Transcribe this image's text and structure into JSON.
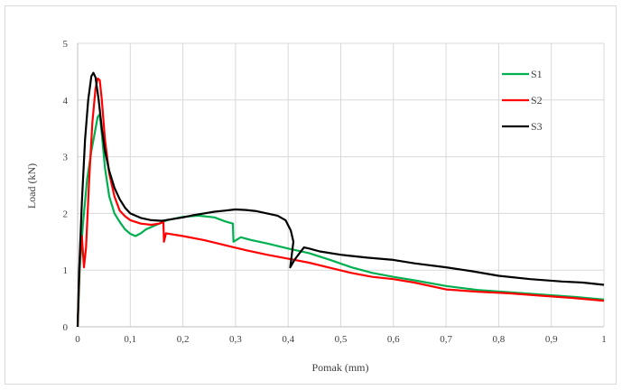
{
  "chart_data": {
    "type": "line",
    "title": "",
    "xlabel": "Pomak (mm)",
    "ylabel": "Load (kN)",
    "xlim": [
      0,
      1
    ],
    "ylim": [
      0,
      5
    ],
    "x_ticks": [
      "0",
      "0,1",
      "0,2",
      "0,3",
      "0,4",
      "0,5",
      "0,6",
      "0,7",
      "0,8",
      "0,9",
      "1"
    ],
    "y_ticks": [
      "0",
      "1",
      "2",
      "3",
      "4",
      "5"
    ],
    "grid": true,
    "legend_position": "right",
    "series": [
      {
        "name": "S1",
        "color": "#00b050",
        "points": [
          [
            0,
            0
          ],
          [
            0.004,
            1.0
          ],
          [
            0.01,
            1.8
          ],
          [
            0.018,
            2.6
          ],
          [
            0.026,
            3.1
          ],
          [
            0.032,
            3.4
          ],
          [
            0.038,
            3.7
          ],
          [
            0.042,
            3.75
          ],
          [
            0.046,
            3.4
          ],
          [
            0.052,
            2.8
          ],
          [
            0.06,
            2.3
          ],
          [
            0.07,
            2.0
          ],
          [
            0.08,
            1.85
          ],
          [
            0.09,
            1.72
          ],
          [
            0.1,
            1.64
          ],
          [
            0.11,
            1.6
          ],
          [
            0.12,
            1.65
          ],
          [
            0.13,
            1.72
          ],
          [
            0.15,
            1.8
          ],
          [
            0.17,
            1.88
          ],
          [
            0.2,
            1.94
          ],
          [
            0.23,
            1.96
          ],
          [
            0.26,
            1.93
          ],
          [
            0.28,
            1.86
          ],
          [
            0.295,
            1.82
          ],
          [
            0.296,
            1.5
          ],
          [
            0.31,
            1.58
          ],
          [
            0.33,
            1.53
          ],
          [
            0.36,
            1.47
          ],
          [
            0.4,
            1.38
          ],
          [
            0.44,
            1.3
          ],
          [
            0.48,
            1.18
          ],
          [
            0.52,
            1.05
          ],
          [
            0.56,
            0.95
          ],
          [
            0.6,
            0.88
          ],
          [
            0.64,
            0.82
          ],
          [
            0.7,
            0.72
          ],
          [
            0.76,
            0.65
          ],
          [
            0.82,
            0.61
          ],
          [
            0.88,
            0.57
          ],
          [
            0.94,
            0.53
          ],
          [
            1.0,
            0.48
          ]
        ]
      },
      {
        "name": "S2",
        "color": "#ff0000",
        "points": [
          [
            0,
            0
          ],
          [
            0.004,
            1.2
          ],
          [
            0.008,
            1.6
          ],
          [
            0.012,
            1.05
          ],
          [
            0.016,
            1.4
          ],
          [
            0.022,
            2.6
          ],
          [
            0.028,
            3.6
          ],
          [
            0.034,
            4.2
          ],
          [
            0.038,
            4.38
          ],
          [
            0.042,
            4.35
          ],
          [
            0.046,
            4.0
          ],
          [
            0.052,
            3.3
          ],
          [
            0.06,
            2.7
          ],
          [
            0.07,
            2.3
          ],
          [
            0.08,
            2.05
          ],
          [
            0.09,
            1.95
          ],
          [
            0.1,
            1.88
          ],
          [
            0.12,
            1.82
          ],
          [
            0.14,
            1.8
          ],
          [
            0.155,
            1.82
          ],
          [
            0.163,
            1.85
          ],
          [
            0.164,
            1.5
          ],
          [
            0.168,
            1.65
          ],
          [
            0.2,
            1.6
          ],
          [
            0.24,
            1.53
          ],
          [
            0.28,
            1.44
          ],
          [
            0.32,
            1.35
          ],
          [
            0.36,
            1.27
          ],
          [
            0.4,
            1.2
          ],
          [
            0.44,
            1.13
          ],
          [
            0.48,
            1.04
          ],
          [
            0.52,
            0.95
          ],
          [
            0.56,
            0.88
          ],
          [
            0.6,
            0.84
          ],
          [
            0.64,
            0.78
          ],
          [
            0.7,
            0.66
          ],
          [
            0.76,
            0.62
          ],
          [
            0.82,
            0.59
          ],
          [
            0.88,
            0.55
          ],
          [
            0.94,
            0.51
          ],
          [
            1.0,
            0.46
          ]
        ]
      },
      {
        "name": "S3",
        "color": "#000000",
        "points": [
          [
            0,
            0
          ],
          [
            0.003,
            1.0
          ],
          [
            0.008,
            2.2
          ],
          [
            0.014,
            3.3
          ],
          [
            0.02,
            4.0
          ],
          [
            0.026,
            4.42
          ],
          [
            0.03,
            4.48
          ],
          [
            0.034,
            4.4
          ],
          [
            0.04,
            4.0
          ],
          [
            0.046,
            3.5
          ],
          [
            0.052,
            3.1
          ],
          [
            0.06,
            2.75
          ],
          [
            0.07,
            2.45
          ],
          [
            0.08,
            2.25
          ],
          [
            0.09,
            2.1
          ],
          [
            0.1,
            2.0
          ],
          [
            0.12,
            1.92
          ],
          [
            0.14,
            1.88
          ],
          [
            0.16,
            1.87
          ],
          [
            0.18,
            1.9
          ],
          [
            0.2,
            1.93
          ],
          [
            0.22,
            1.97
          ],
          [
            0.24,
            2.0
          ],
          [
            0.26,
            2.03
          ],
          [
            0.28,
            2.05
          ],
          [
            0.3,
            2.07
          ],
          [
            0.32,
            2.06
          ],
          [
            0.34,
            2.04
          ],
          [
            0.36,
            2.0
          ],
          [
            0.38,
            1.96
          ],
          [
            0.395,
            1.88
          ],
          [
            0.405,
            1.7
          ],
          [
            0.41,
            1.5
          ],
          [
            0.404,
            1.05
          ],
          [
            0.412,
            1.18
          ],
          [
            0.42,
            1.28
          ],
          [
            0.43,
            1.4
          ],
          [
            0.44,
            1.38
          ],
          [
            0.46,
            1.33
          ],
          [
            0.5,
            1.27
          ],
          [
            0.55,
            1.22
          ],
          [
            0.6,
            1.18
          ],
          [
            0.64,
            1.12
          ],
          [
            0.7,
            1.05
          ],
          [
            0.75,
            0.98
          ],
          [
            0.8,
            0.9
          ],
          [
            0.86,
            0.84
          ],
          [
            0.92,
            0.8
          ],
          [
            0.96,
            0.78
          ],
          [
            1.0,
            0.74
          ]
        ]
      }
    ]
  }
}
